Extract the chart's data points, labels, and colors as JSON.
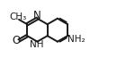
{
  "background_color": "#ffffff",
  "bond_color": "#1a1a1a",
  "text_color": "#1a1a1a",
  "lw": 1.4,
  "fs": 7.5,
  "xlim": [
    -2.0,
    2.6
  ],
  "ylim": [
    -1.3,
    1.4
  ],
  "labels": {
    "CH3": "CH₃",
    "N": "N",
    "O": "O",
    "NH": "NH",
    "NH2": "NH₂"
  }
}
